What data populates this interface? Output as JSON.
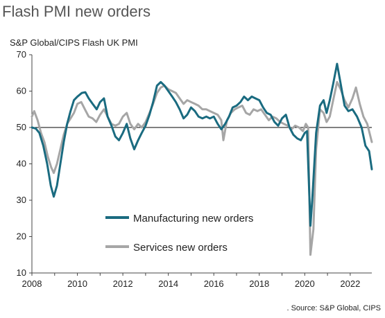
{
  "title": "Flash PMI new orders",
  "subtitle": "S&P Global/CIPS Flash UK PMI",
  "source": ". Source: S&P Global, CIPS",
  "chart_data": {
    "type": "line",
    "title": "Flash PMI new orders",
    "subtitle": "S&P Global/CIPS Flash UK PMI",
    "xlabel": "",
    "ylabel": "",
    "xlim": [
      2008,
      2022.95
    ],
    "ylim": [
      10,
      70
    ],
    "x_ticks": [
      "2008",
      "2010",
      "2012",
      "2014",
      "2016",
      "2018",
      "2020",
      "2022"
    ],
    "y_ticks": [
      "10",
      "20",
      "30",
      "40",
      "50",
      "60",
      "70"
    ],
    "reference_line": 50,
    "grid": false,
    "legend_position": "inside-bottom-left",
    "series": [
      {
        "name": "Manufacturing new orders",
        "color": "#1a6b80",
        "points": [
          [
            2008.0,
            50.0
          ],
          [
            2008.17,
            49.7
          ],
          [
            2008.33,
            48.5
          ],
          [
            2008.5,
            45.0
          ],
          [
            2008.67,
            40.0
          ],
          [
            2008.83,
            34.0
          ],
          [
            2008.96,
            31.0
          ],
          [
            2009.1,
            34.0
          ],
          [
            2009.25,
            40.0
          ],
          [
            2009.4,
            46.0
          ],
          [
            2009.55,
            51.0
          ],
          [
            2009.7,
            54.5
          ],
          [
            2009.85,
            57.5
          ],
          [
            2010.0,
            58.5
          ],
          [
            2010.2,
            59.5
          ],
          [
            2010.35,
            59.7
          ],
          [
            2010.5,
            58.0
          ],
          [
            2010.67,
            56.5
          ],
          [
            2010.85,
            55.0
          ],
          [
            2011.0,
            57.0
          ],
          [
            2011.17,
            58.0
          ],
          [
            2011.33,
            53.0
          ],
          [
            2011.5,
            50.5
          ],
          [
            2011.67,
            47.5
          ],
          [
            2011.83,
            46.5
          ],
          [
            2012.0,
            48.5
          ],
          [
            2012.17,
            51.0
          ],
          [
            2012.33,
            47.0
          ],
          [
            2012.5,
            44.0
          ],
          [
            2012.67,
            46.5
          ],
          [
            2012.83,
            48.5
          ],
          [
            2013.0,
            50.5
          ],
          [
            2013.17,
            53.5
          ],
          [
            2013.33,
            57.0
          ],
          [
            2013.5,
            61.5
          ],
          [
            2013.67,
            62.5
          ],
          [
            2013.83,
            61.5
          ],
          [
            2014.0,
            60.0
          ],
          [
            2014.17,
            58.5
          ],
          [
            2014.33,
            57.0
          ],
          [
            2014.5,
            55.0
          ],
          [
            2014.67,
            52.5
          ],
          [
            2014.83,
            53.5
          ],
          [
            2015.0,
            55.5
          ],
          [
            2015.17,
            54.5
          ],
          [
            2015.33,
            53.0
          ],
          [
            2015.5,
            52.5
          ],
          [
            2015.67,
            53.0
          ],
          [
            2015.83,
            52.5
          ],
          [
            2016.0,
            53.0
          ],
          [
            2016.17,
            51.0
          ],
          [
            2016.33,
            49.5
          ],
          [
            2016.5,
            51.0
          ],
          [
            2016.67,
            53.0
          ],
          [
            2016.83,
            55.5
          ],
          [
            2017.0,
            56.0
          ],
          [
            2017.17,
            57.0
          ],
          [
            2017.33,
            58.5
          ],
          [
            2017.5,
            57.5
          ],
          [
            2017.67,
            58.5
          ],
          [
            2017.83,
            58.0
          ],
          [
            2018.0,
            57.5
          ],
          [
            2018.17,
            55.5
          ],
          [
            2018.33,
            54.0
          ],
          [
            2018.5,
            53.5
          ],
          [
            2018.67,
            51.5
          ],
          [
            2018.83,
            50.5
          ],
          [
            2019.0,
            52.5
          ],
          [
            2019.17,
            53.5
          ],
          [
            2019.33,
            50.0
          ],
          [
            2019.5,
            48.0
          ],
          [
            2019.67,
            47.0
          ],
          [
            2019.83,
            46.5
          ],
          [
            2020.0,
            48.5
          ],
          [
            2020.1,
            49.0
          ],
          [
            2020.25,
            23.0
          ],
          [
            2020.33,
            30.0
          ],
          [
            2020.5,
            48.5
          ],
          [
            2020.67,
            56.0
          ],
          [
            2020.83,
            57.5
          ],
          [
            2020.96,
            54.0
          ],
          [
            2021.1,
            57.5
          ],
          [
            2021.25,
            62.0
          ],
          [
            2021.42,
            67.5
          ],
          [
            2021.58,
            62.0
          ],
          [
            2021.75,
            56.0
          ],
          [
            2021.92,
            54.5
          ],
          [
            2022.1,
            55.0
          ],
          [
            2022.3,
            53.0
          ],
          [
            2022.5,
            50.0
          ],
          [
            2022.67,
            45.0
          ],
          [
            2022.83,
            43.5
          ],
          [
            2022.95,
            38.5
          ]
        ]
      },
      {
        "name": "Services new orders",
        "color": "#a6a6a6",
        "points": [
          [
            2008.0,
            53.0
          ],
          [
            2008.1,
            54.5
          ],
          [
            2008.25,
            52.0
          ],
          [
            2008.4,
            48.5
          ],
          [
            2008.55,
            46.0
          ],
          [
            2008.7,
            42.0
          ],
          [
            2008.85,
            39.0
          ],
          [
            2008.96,
            37.5
          ],
          [
            2009.1,
            40.0
          ],
          [
            2009.25,
            44.0
          ],
          [
            2009.4,
            48.0
          ],
          [
            2009.55,
            51.0
          ],
          [
            2009.7,
            52.5
          ],
          [
            2009.85,
            54.0
          ],
          [
            2010.0,
            56.5
          ],
          [
            2010.17,
            57.0
          ],
          [
            2010.33,
            55.0
          ],
          [
            2010.5,
            53.0
          ],
          [
            2010.67,
            52.5
          ],
          [
            2010.83,
            51.5
          ],
          [
            2011.0,
            53.5
          ],
          [
            2011.17,
            55.0
          ],
          [
            2011.33,
            53.0
          ],
          [
            2011.5,
            51.0
          ],
          [
            2011.67,
            50.5
          ],
          [
            2011.83,
            51.0
          ],
          [
            2012.0,
            53.0
          ],
          [
            2012.17,
            54.0
          ],
          [
            2012.33,
            51.0
          ],
          [
            2012.5,
            49.5
          ],
          [
            2012.67,
            51.0
          ],
          [
            2012.83,
            50.0
          ],
          [
            2013.0,
            51.5
          ],
          [
            2013.17,
            54.0
          ],
          [
            2013.33,
            56.5
          ],
          [
            2013.5,
            59.5
          ],
          [
            2013.67,
            61.0
          ],
          [
            2013.83,
            61.5
          ],
          [
            2014.0,
            60.5
          ],
          [
            2014.17,
            60.0
          ],
          [
            2014.33,
            59.5
          ],
          [
            2014.5,
            58.0
          ],
          [
            2014.67,
            56.5
          ],
          [
            2014.83,
            57.5
          ],
          [
            2015.0,
            57.0
          ],
          [
            2015.17,
            56.5
          ],
          [
            2015.33,
            56.0
          ],
          [
            2015.5,
            55.0
          ],
          [
            2015.67,
            55.0
          ],
          [
            2015.83,
            54.5
          ],
          [
            2016.0,
            54.0
          ],
          [
            2016.17,
            53.5
          ],
          [
            2016.33,
            52.0
          ],
          [
            2016.42,
            46.5
          ],
          [
            2016.58,
            52.0
          ],
          [
            2016.75,
            54.0
          ],
          [
            2016.92,
            55.0
          ],
          [
            2017.08,
            55.5
          ],
          [
            2017.25,
            56.0
          ],
          [
            2017.42,
            54.0
          ],
          [
            2017.58,
            53.5
          ],
          [
            2017.75,
            55.0
          ],
          [
            2017.92,
            54.5
          ],
          [
            2018.08,
            55.0
          ],
          [
            2018.25,
            53.5
          ],
          [
            2018.42,
            52.0
          ],
          [
            2018.58,
            53.0
          ],
          [
            2018.75,
            52.5
          ],
          [
            2018.92,
            51.5
          ],
          [
            2019.08,
            51.0
          ],
          [
            2019.25,
            50.5
          ],
          [
            2019.42,
            49.5
          ],
          [
            2019.58,
            50.5
          ],
          [
            2019.75,
            50.0
          ],
          [
            2019.92,
            49.0
          ],
          [
            2020.05,
            51.0
          ],
          [
            2020.15,
            50.0
          ],
          [
            2020.25,
            15.0
          ],
          [
            2020.38,
            22.0
          ],
          [
            2020.5,
            44.0
          ],
          [
            2020.67,
            55.0
          ],
          [
            2020.83,
            54.0
          ],
          [
            2020.96,
            51.5
          ],
          [
            2021.1,
            53.0
          ],
          [
            2021.25,
            57.5
          ],
          [
            2021.42,
            62.5
          ],
          [
            2021.58,
            60.5
          ],
          [
            2021.75,
            57.5
          ],
          [
            2021.92,
            55.5
          ],
          [
            2022.1,
            58.0
          ],
          [
            2022.25,
            61.0
          ],
          [
            2022.42,
            56.5
          ],
          [
            2022.58,
            53.0
          ],
          [
            2022.75,
            51.0
          ],
          [
            2022.95,
            46.0
          ]
        ]
      }
    ]
  }
}
